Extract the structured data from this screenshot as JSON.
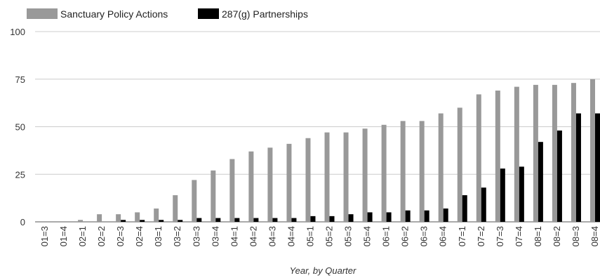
{
  "chart_data": {
    "type": "bar",
    "title": "",
    "xlabel": "Year, by Quarter",
    "ylabel": "",
    "ylim": [
      0,
      100
    ],
    "yticks": [
      0,
      25,
      50,
      75,
      100
    ],
    "grid": true,
    "legend_position": "top-left",
    "categories": [
      "01=3",
      "01=4",
      "02=1",
      "02=2",
      "02=3",
      "02=4",
      "03=1",
      "03=2",
      "03=3",
      "03=4",
      "04=1",
      "04=2",
      "04=3",
      "04=4",
      "05=1",
      "05=2",
      "05=3",
      "05=4",
      "06=1",
      "06=2",
      "06=3",
      "06=4",
      "07=1",
      "07=2",
      "07=3",
      "07=4",
      "08=1",
      "08=2",
      "08=3",
      "08=4"
    ],
    "series": [
      {
        "name": "Sanctuary Policy Actions",
        "color": "#999999",
        "values": [
          0,
          0,
          1,
          4,
          4,
          5,
          7,
          14,
          22,
          27,
          33,
          37,
          39,
          41,
          44,
          47,
          47,
          49,
          51,
          53,
          53,
          57,
          60,
          67,
          69,
          71,
          72,
          72,
          73,
          75
        ]
      },
      {
        "name": "287(g) Partnerships",
        "color": "#000000",
        "values": [
          0,
          0,
          0,
          0,
          1,
          1,
          1,
          1,
          2,
          2,
          2,
          2,
          2,
          2,
          3,
          3,
          4,
          5,
          5,
          6,
          6,
          7,
          14,
          18,
          28,
          29,
          42,
          48,
          57,
          57
        ]
      }
    ]
  }
}
